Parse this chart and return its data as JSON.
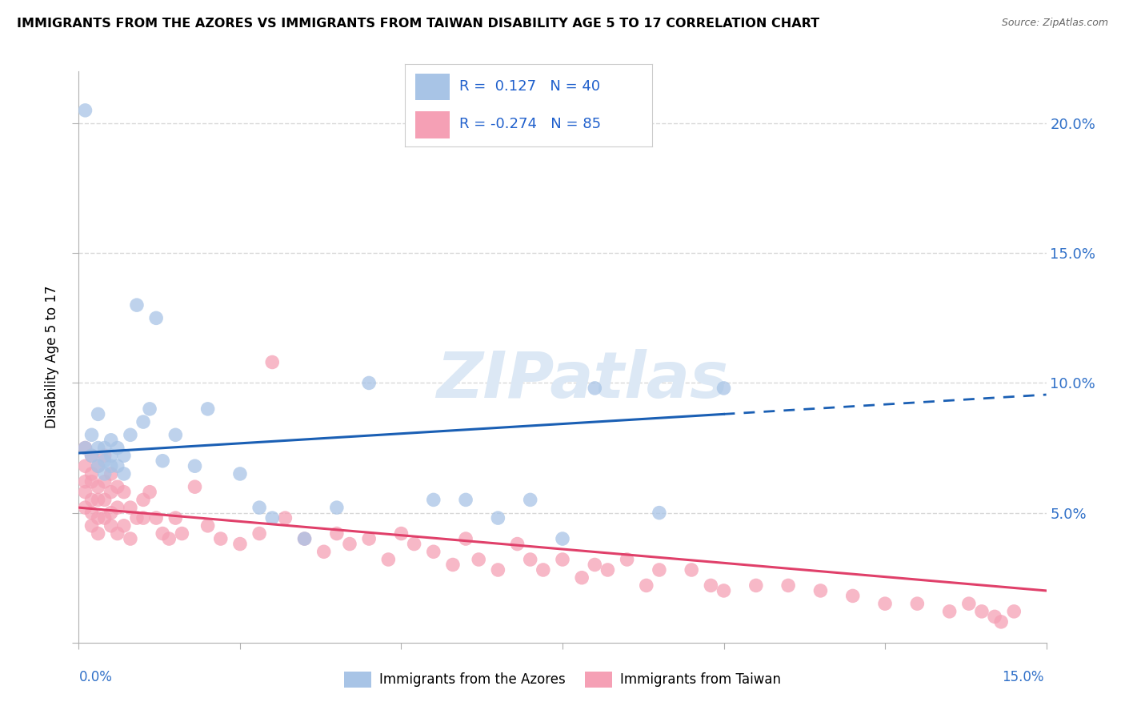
{
  "title": "IMMIGRANTS FROM THE AZORES VS IMMIGRANTS FROM TAIWAN DISABILITY AGE 5 TO 17 CORRELATION CHART",
  "source": "Source: ZipAtlas.com",
  "ylabel": "Disability Age 5 to 17",
  "xmin": 0.0,
  "xmax": 0.15,
  "ymin": 0.0,
  "ymax": 0.22,
  "azores_color": "#a8c4e6",
  "taiwan_color": "#f5a0b5",
  "azores_line_color": "#1a5fb4",
  "taiwan_line_color": "#e0406a",
  "legend_bottom_azores": "Immigrants from the Azores",
  "legend_bottom_taiwan": "Immigrants from Taiwan",
  "watermark": "ZIPatlas",
  "background_color": "#ffffff",
  "grid_color": "#d8d8d8",
  "azores_x": [
    0.001,
    0.001,
    0.002,
    0.002,
    0.003,
    0.003,
    0.003,
    0.004,
    0.004,
    0.004,
    0.005,
    0.005,
    0.005,
    0.006,
    0.006,
    0.007,
    0.007,
    0.008,
    0.009,
    0.01,
    0.011,
    0.012,
    0.013,
    0.015,
    0.018,
    0.02,
    0.025,
    0.028,
    0.03,
    0.035,
    0.04,
    0.045,
    0.055,
    0.06,
    0.065,
    0.07,
    0.075,
    0.08,
    0.09,
    0.1
  ],
  "azores_y": [
    0.205,
    0.075,
    0.08,
    0.072,
    0.088,
    0.075,
    0.068,
    0.075,
    0.07,
    0.065,
    0.078,
    0.068,
    0.072,
    0.075,
    0.068,
    0.072,
    0.065,
    0.08,
    0.13,
    0.085,
    0.09,
    0.125,
    0.07,
    0.08,
    0.068,
    0.09,
    0.065,
    0.052,
    0.048,
    0.04,
    0.052,
    0.1,
    0.055,
    0.055,
    0.048,
    0.055,
    0.04,
    0.098,
    0.05,
    0.098
  ],
  "taiwan_x": [
    0.001,
    0.001,
    0.001,
    0.001,
    0.001,
    0.002,
    0.002,
    0.002,
    0.002,
    0.002,
    0.002,
    0.003,
    0.003,
    0.003,
    0.003,
    0.003,
    0.004,
    0.004,
    0.004,
    0.004,
    0.005,
    0.005,
    0.005,
    0.005,
    0.006,
    0.006,
    0.006,
    0.007,
    0.007,
    0.008,
    0.008,
    0.009,
    0.01,
    0.01,
    0.011,
    0.012,
    0.013,
    0.014,
    0.015,
    0.016,
    0.018,
    0.02,
    0.022,
    0.025,
    0.028,
    0.03,
    0.032,
    0.035,
    0.038,
    0.04,
    0.042,
    0.045,
    0.048,
    0.05,
    0.052,
    0.055,
    0.058,
    0.06,
    0.062,
    0.065,
    0.068,
    0.07,
    0.072,
    0.075,
    0.078,
    0.08,
    0.082,
    0.085,
    0.088,
    0.09,
    0.095,
    0.098,
    0.1,
    0.105,
    0.11,
    0.115,
    0.12,
    0.125,
    0.13,
    0.135,
    0.138,
    0.14,
    0.142,
    0.143,
    0.145
  ],
  "taiwan_y": [
    0.075,
    0.068,
    0.062,
    0.058,
    0.052,
    0.072,
    0.065,
    0.062,
    0.055,
    0.05,
    0.045,
    0.068,
    0.06,
    0.055,
    0.048,
    0.042,
    0.072,
    0.062,
    0.055,
    0.048,
    0.065,
    0.058,
    0.05,
    0.045,
    0.06,
    0.052,
    0.042,
    0.058,
    0.045,
    0.052,
    0.04,
    0.048,
    0.055,
    0.048,
    0.058,
    0.048,
    0.042,
    0.04,
    0.048,
    0.042,
    0.06,
    0.045,
    0.04,
    0.038,
    0.042,
    0.108,
    0.048,
    0.04,
    0.035,
    0.042,
    0.038,
    0.04,
    0.032,
    0.042,
    0.038,
    0.035,
    0.03,
    0.04,
    0.032,
    0.028,
    0.038,
    0.032,
    0.028,
    0.032,
    0.025,
    0.03,
    0.028,
    0.032,
    0.022,
    0.028,
    0.028,
    0.022,
    0.02,
    0.022,
    0.022,
    0.02,
    0.018,
    0.015,
    0.015,
    0.012,
    0.015,
    0.012,
    0.01,
    0.008,
    0.012
  ],
  "azores_line_x_solid_end": 0.1,
  "azores_line_x_dashed_start": 0.1,
  "azores_line_x_end": 0.15,
  "taiwan_line_x_start": 0.0,
  "taiwan_line_x_end": 0.15
}
